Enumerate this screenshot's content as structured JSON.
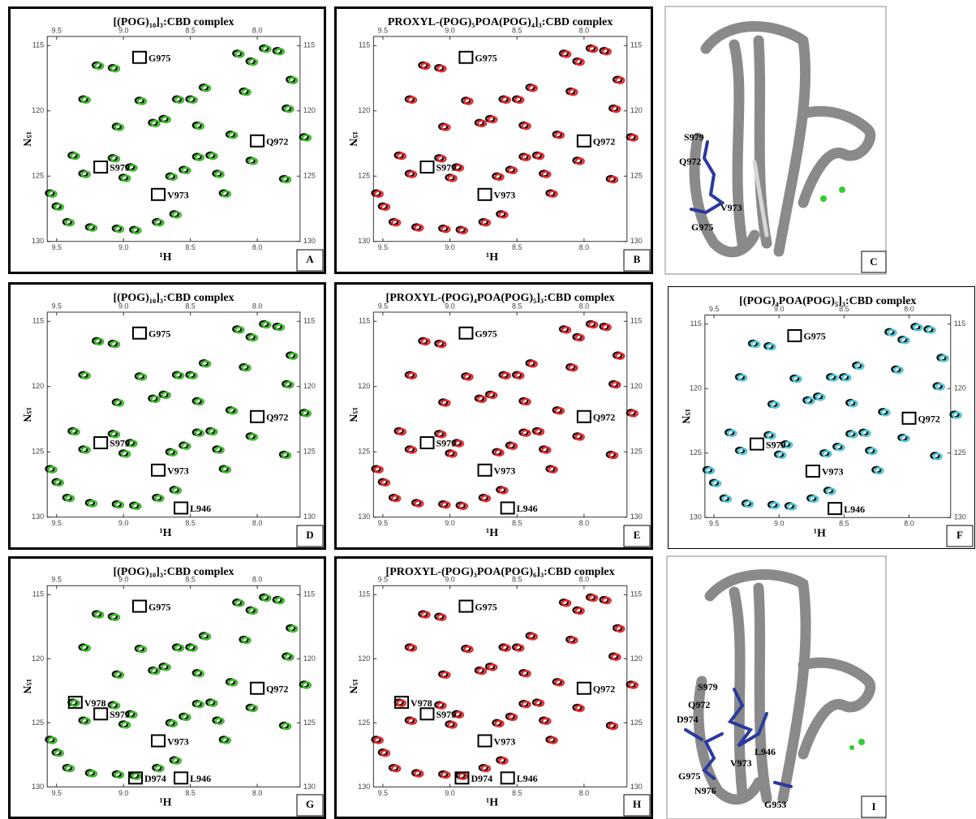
{
  "peaks": [
    [
      9.55,
      126.3
    ],
    [
      9.5,
      127.3
    ],
    [
      9.42,
      128.5
    ],
    [
      9.3,
      119.1
    ],
    [
      9.38,
      123.4
    ],
    [
      9.3,
      124.8
    ],
    [
      9.2,
      116.5
    ],
    [
      9.08,
      116.7
    ],
    [
      9.05,
      121.2
    ],
    [
      9.08,
      123.6
    ],
    [
      9.0,
      125.1
    ],
    [
      8.95,
      124.3
    ],
    [
      8.88,
      119.2
    ],
    [
      8.78,
      120.9
    ],
    [
      8.7,
      120.6
    ],
    [
      8.6,
      119.1
    ],
    [
      8.5,
      119.1
    ],
    [
      8.45,
      121.1
    ],
    [
      8.65,
      125.0
    ],
    [
      8.55,
      124.5
    ],
    [
      8.45,
      123.5
    ],
    [
      8.35,
      123.4
    ],
    [
      8.3,
      124.8
    ],
    [
      8.25,
      126.3
    ],
    [
      8.15,
      115.6
    ],
    [
      8.05,
      116.2
    ],
    [
      7.95,
      115.2
    ],
    [
      7.85,
      115.4
    ],
    [
      7.75,
      117.6
    ],
    [
      7.78,
      119.8
    ],
    [
      8.2,
      121.8
    ],
    [
      7.65,
      122.0
    ],
    [
      8.05,
      123.8
    ],
    [
      7.8,
      125.2
    ],
    [
      9.05,
      129.0
    ],
    [
      8.92,
      129.1
    ],
    [
      8.75,
      128.5
    ],
    [
      8.62,
      127.9
    ],
    [
      9.25,
      128.9
    ],
    [
      8.4,
      118.2
    ],
    [
      8.1,
      118.5
    ]
  ],
  "panels": [
    {
      "letter": "A",
      "title": "[(POG)₁₀]₃:CBD complex",
      "color": "#3dbb2a",
      "x_label": "¹H",
      "y_label": "¹⁵N",
      "xlim": [
        9.57,
        7.68
      ],
      "ylim": [
        114.3,
        130
      ],
      "xticks": [
        9.5,
        {
          "value": 9,
          "label": "9.0"
        },
        8.5,
        {
          "value": 8,
          "label": "8.0"
        }
      ],
      "yticks": [
        115,
        120,
        125,
        130
      ],
      "residues": [
        {
          "label": "G975",
          "h": 8.88,
          "n": 115.9
        },
        {
          "label": "Q972",
          "h": 8.0,
          "n": 122.3
        },
        {
          "label": "S979",
          "h": 9.17,
          "n": 124.3
        },
        {
          "label": "V973",
          "h": 8.74,
          "n": 126.4
        }
      ]
    },
    {
      "letter": "B",
      "title": "PROXYL-(POG)₅POA(POG)₄]₃:CBD complex",
      "color": "#e8282a",
      "x_label": "¹H",
      "y_label": "¹⁵N",
      "xlim": [
        9.57,
        7.68
      ],
      "ylim": [
        114.3,
        130
      ],
      "xticks": [
        9.5,
        {
          "value": 9,
          "label": "9.0"
        },
        8.5,
        {
          "value": 8,
          "label": "8.0"
        }
      ],
      "yticks": [
        115,
        120,
        125,
        130
      ],
      "residues": [
        {
          "label": "G975",
          "h": 8.88,
          "n": 115.9
        },
        {
          "label": "Q972",
          "h": 8.0,
          "n": 122.3
        },
        {
          "label": "S979",
          "h": 9.17,
          "n": 124.3
        },
        {
          "label": "V973",
          "h": 8.74,
          "n": 126.4
        }
      ]
    },
    {
      "letter": "C",
      "residues": [
        "S979",
        "Q972",
        "V973",
        "G975"
      ]
    },
    {
      "letter": "D",
      "title": "[(POG)₁₀]₃:CBD complex",
      "color": "#3dbb2a",
      "x_label": "¹H",
      "y_label": "¹⁵N",
      "xlim": [
        9.57,
        7.68
      ],
      "ylim": [
        114.3,
        130
      ],
      "xticks": [
        9.5,
        {
          "value": 9,
          "label": "9.0"
        },
        8.5,
        {
          "value": 8,
          "label": "8.0"
        }
      ],
      "yticks": [
        115,
        120,
        125,
        130
      ],
      "residues": [
        {
          "label": "G975",
          "h": 8.88,
          "n": 115.9
        },
        {
          "label": "Q972",
          "h": 8.0,
          "n": 122.3
        },
        {
          "label": "S979",
          "h": 9.17,
          "n": 124.3
        },
        {
          "label": "V973",
          "h": 8.74,
          "n": 126.4
        },
        {
          "label": "L946",
          "h": 8.57,
          "n": 129.3
        }
      ]
    },
    {
      "letter": "E",
      "title": "[PROXYL-(POG)₄POA(POG)₅]₃:CBD complex",
      "color": "#e8282a",
      "x_label": "¹H",
      "y_label": "¹⁵N",
      "xlim": [
        9.57,
        7.68
      ],
      "ylim": [
        114.3,
        130
      ],
      "xticks": [
        9.5,
        {
          "value": 9,
          "label": "9.0"
        },
        8.5,
        {
          "value": 8,
          "label": "8.0"
        }
      ],
      "yticks": [
        115,
        120,
        125,
        130
      ],
      "residues": [
        {
          "label": "G975",
          "h": 8.88,
          "n": 115.9
        },
        {
          "label": "Q972",
          "h": 8.0,
          "n": 122.3
        },
        {
          "label": "S979",
          "h": 9.17,
          "n": 124.3
        },
        {
          "label": "V973",
          "h": 8.74,
          "n": 126.4
        },
        {
          "label": "L946",
          "h": 8.57,
          "n": 129.3
        }
      ]
    },
    {
      "letter": "F",
      "title": "[(POG)₄POA(POG)₅]₃:CBD complex",
      "color": "#4fc8d8",
      "x_label": "¹H",
      "y_label": "¹⁵N",
      "xlim": [
        9.57,
        7.68
      ],
      "ylim": [
        114.3,
        130
      ],
      "xticks": [
        9.5,
        {
          "value": 9,
          "label": "9.0"
        },
        8.5,
        {
          "value": 8,
          "label": "8.0"
        }
      ],
      "yticks": [
        115,
        120,
        125,
        130
      ],
      "residues": [
        {
          "label": "G975",
          "h": 8.88,
          "n": 115.9
        },
        {
          "label": "Q972",
          "h": 8.0,
          "n": 122.3
        },
        {
          "label": "S979",
          "h": 9.17,
          "n": 124.3
        },
        {
          "label": "V973",
          "h": 8.74,
          "n": 126.4
        },
        {
          "label": "L946",
          "h": 8.57,
          "n": 129.3
        }
      ]
    },
    {
      "letter": "G",
      "title": "[(POG)₁₀]₃:CBD complex",
      "color": "#3dbb2a",
      "x_label": "¹H",
      "y_label": "¹⁵N",
      "xlim": [
        9.57,
        7.68
      ],
      "ylim": [
        114.3,
        130
      ],
      "xticks": [
        9.5,
        {
          "value": 9,
          "label": "9.0"
        },
        8.5,
        {
          "value": 8,
          "label": "8.0"
        }
      ],
      "yticks": [
        115,
        120,
        125,
        130
      ],
      "residues": [
        {
          "label": "G975",
          "h": 8.88,
          "n": 115.9
        },
        {
          "label": "Q972",
          "h": 8.0,
          "n": 122.3
        },
        {
          "label": "S979",
          "h": 9.17,
          "n": 124.3
        },
        {
          "label": "V973",
          "h": 8.74,
          "n": 126.4
        },
        {
          "label": "L946",
          "h": 8.57,
          "n": 129.3
        },
        {
          "label": "V978",
          "h": 9.36,
          "n": 123.4
        },
        {
          "label": "D974",
          "h": 8.91,
          "n": 129.3
        }
      ]
    },
    {
      "letter": "H",
      "title": "[PROXYL-(POG)₃POA(POG)₆]₃:CBD complex",
      "color": "#e8282a",
      "x_label": "¹H",
      "y_label": "¹⁵N",
      "xlim": [
        9.57,
        7.68
      ],
      "ylim": [
        114.3,
        130
      ],
      "xticks": [
        9.5,
        {
          "value": 9,
          "label": "9.0"
        },
        8.5,
        {
          "value": 8,
          "label": "8.0"
        }
      ],
      "yticks": [
        115,
        120,
        125,
        130
      ],
      "residues": [
        {
          "label": "G975",
          "h": 8.88,
          "n": 115.9
        },
        {
          "label": "Q972",
          "h": 8.0,
          "n": 122.3
        },
        {
          "label": "S979",
          "h": 9.17,
          "n": 124.3
        },
        {
          "label": "V973",
          "h": 8.74,
          "n": 126.4
        },
        {
          "label": "L946",
          "h": 8.57,
          "n": 129.3
        },
        {
          "label": "V978",
          "h": 9.36,
          "n": 123.4
        },
        {
          "label": "D974",
          "h": 8.91,
          "n": 129.3
        }
      ]
    },
    {
      "letter": "I",
      "residues": [
        "S979",
        "Q972",
        "D974",
        "L946",
        "V973",
        "G975",
        "N976",
        "G953"
      ]
    }
  ]
}
